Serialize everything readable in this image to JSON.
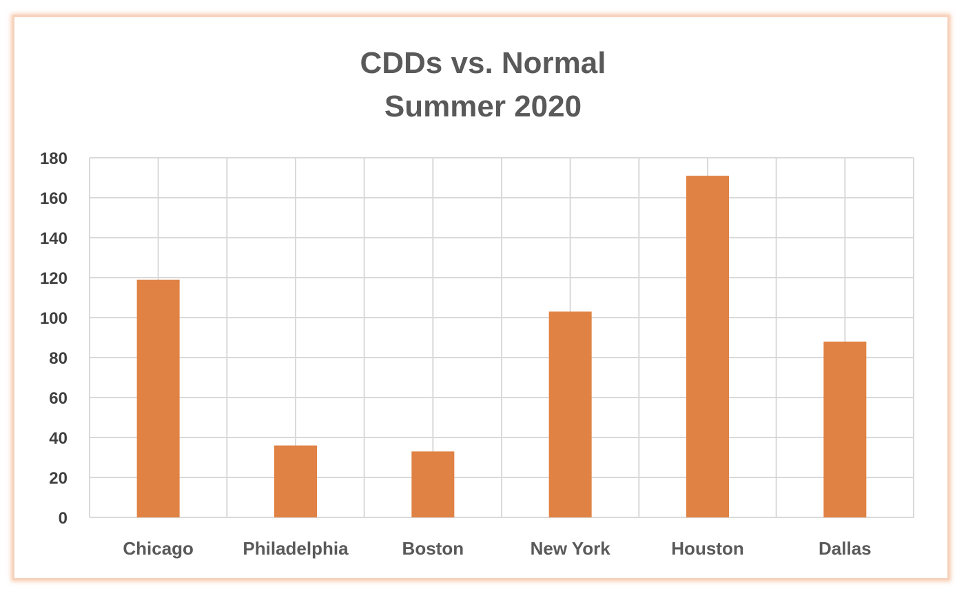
{
  "chart_data": {
    "type": "bar",
    "title_lines": [
      "CDDs  vs. Normal",
      "Summer 2020"
    ],
    "xlabel": "",
    "ylabel": "",
    "categories": [
      "Chicago",
      "Philadelphia",
      "Boston",
      "New York",
      "Houston",
      "Dallas"
    ],
    "values": [
      119,
      36,
      33,
      103,
      171,
      88
    ],
    "ylim": [
      0,
      180
    ],
    "ytick_step": 20,
    "grid": true,
    "legend": "none",
    "bar_color": "#e08244",
    "grid_color": "#d9d9d9",
    "frame_glow_color": "#f6c6a6"
  }
}
